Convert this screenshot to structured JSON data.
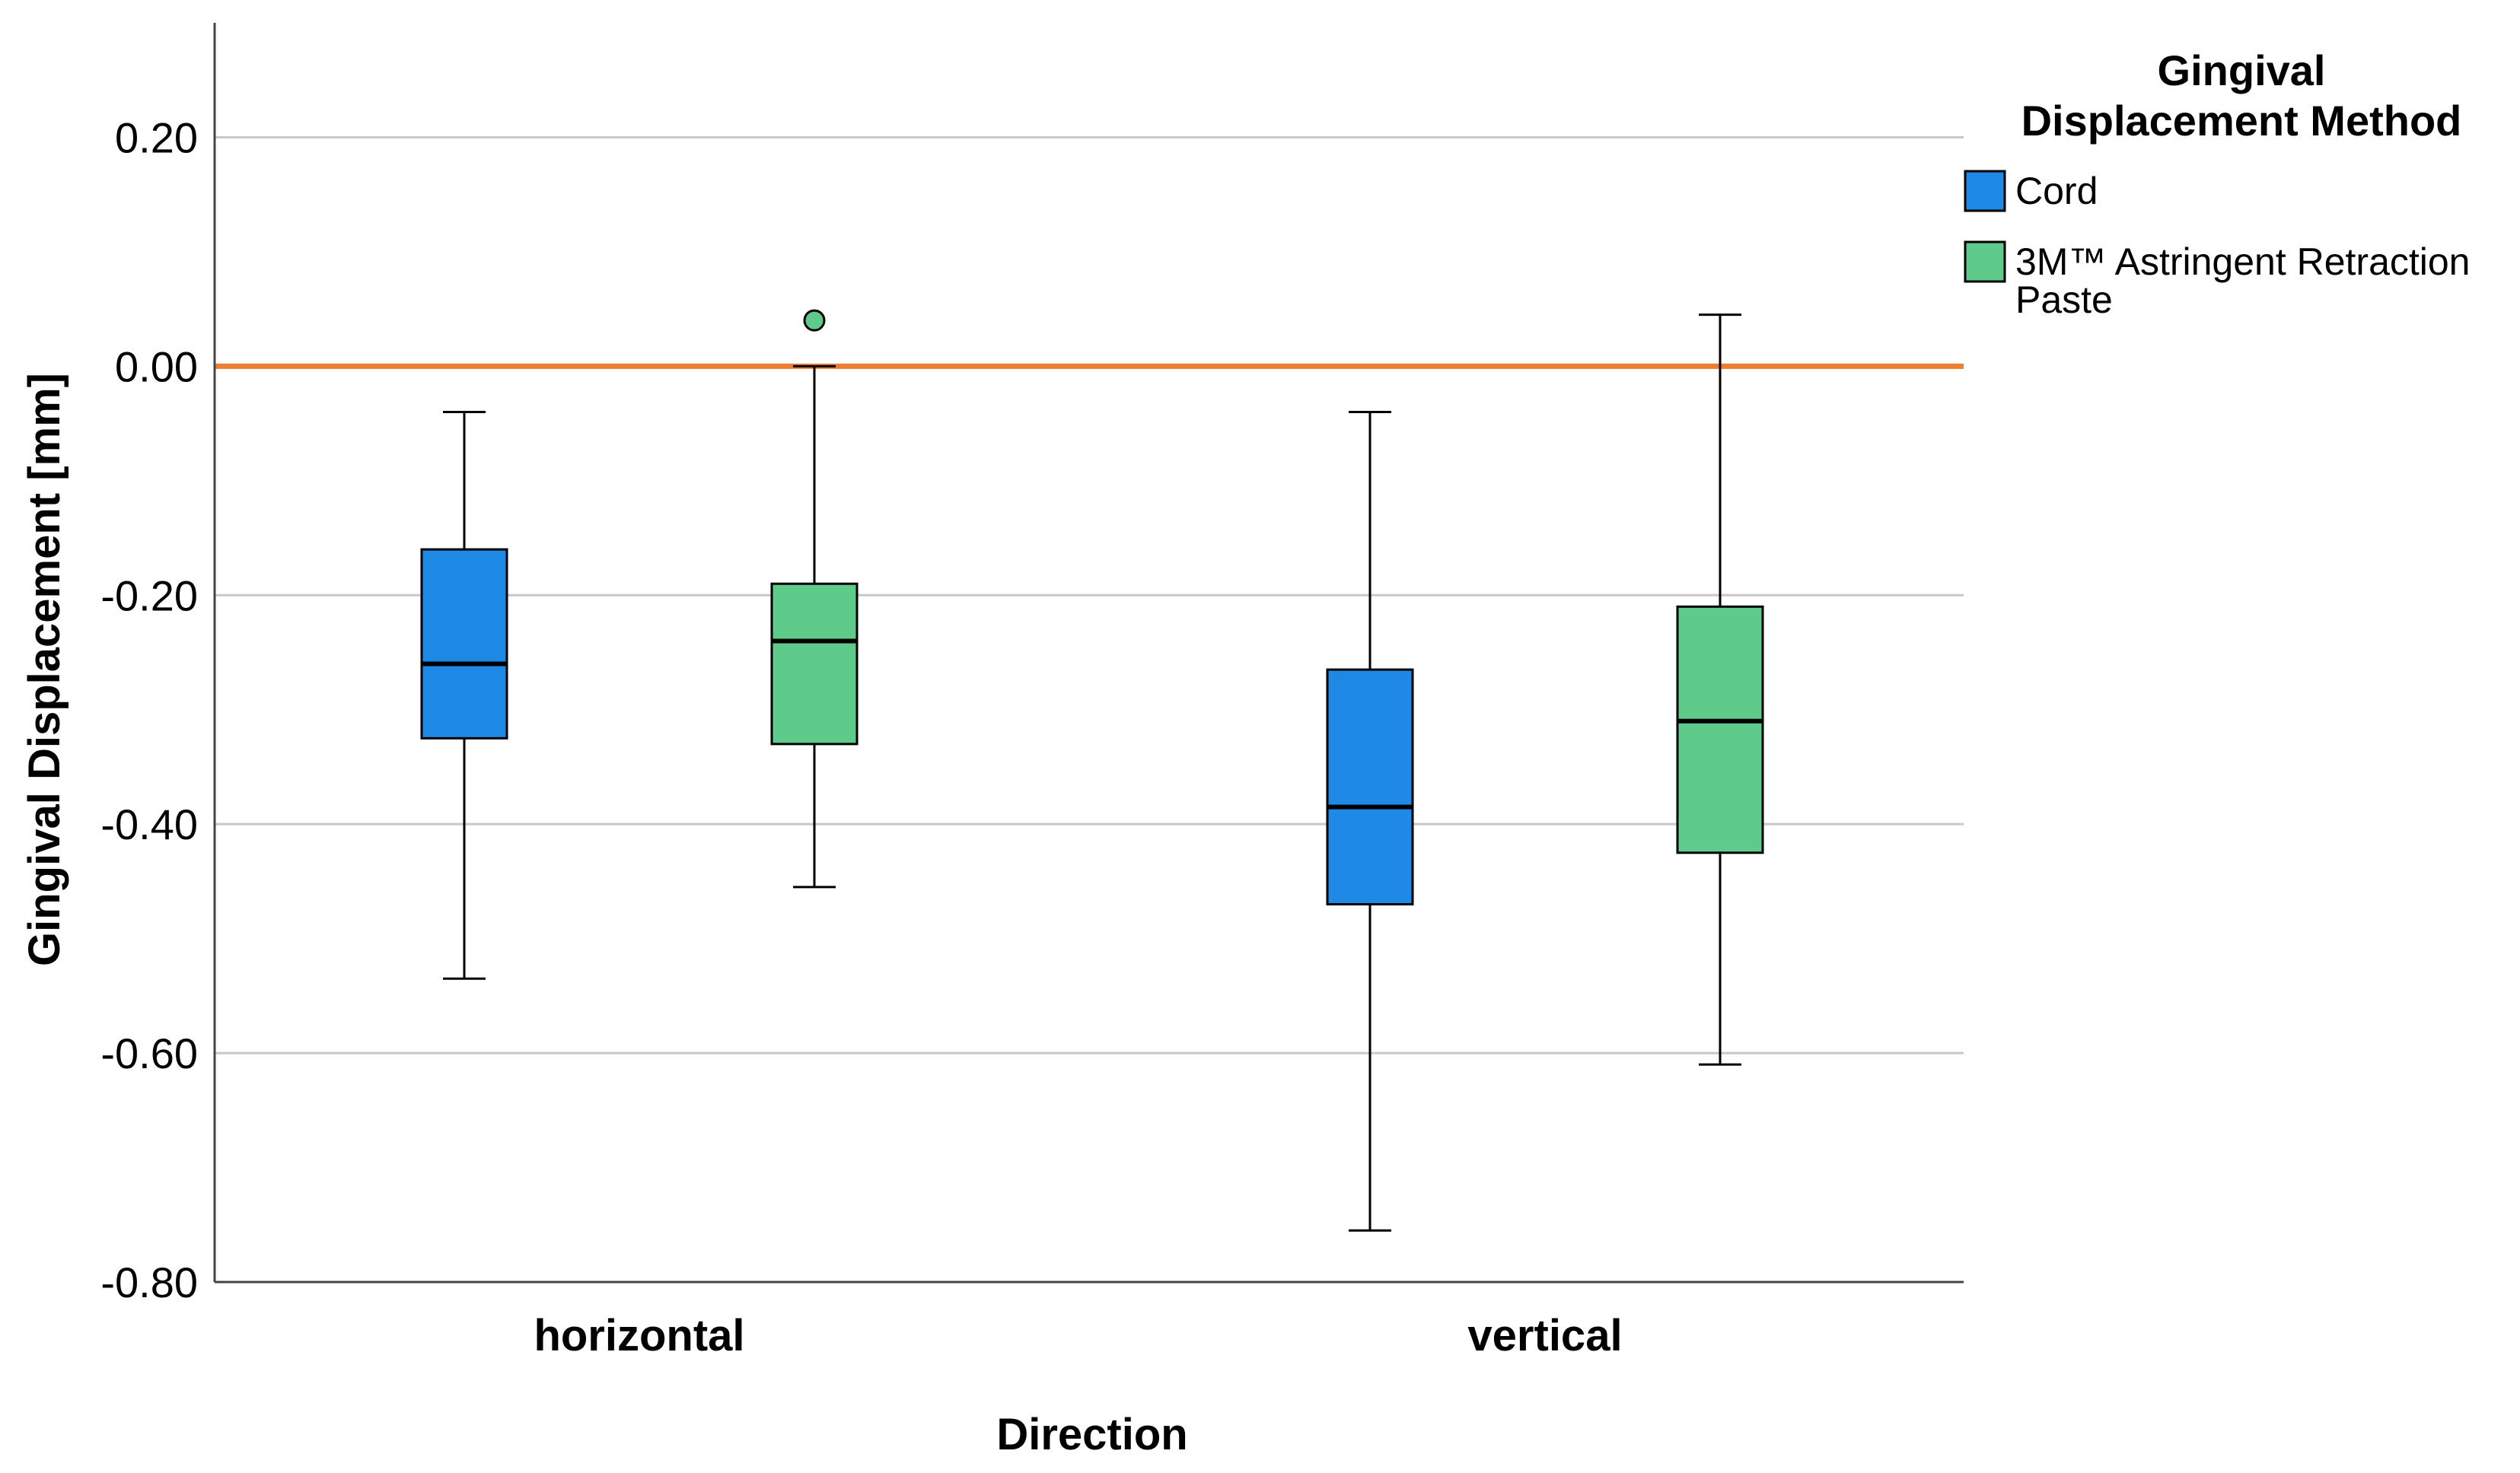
{
  "chart_data": {
    "type": "box",
    "title": "",
    "xlabel": "Direction",
    "ylabel": "Gingival Displacement [mm]",
    "ylim": [
      -0.8,
      0.3
    ],
    "yticks": [
      0.2,
      0.0,
      -0.2,
      -0.4,
      -0.6,
      -0.8
    ],
    "ytick_labels": [
      "0.20",
      "0.00",
      "-0.20",
      "-0.40",
      "-0.60",
      "-0.80"
    ],
    "grid": true,
    "categories": [
      "horizontal",
      "vertical"
    ],
    "reference_line": {
      "value": 0.0,
      "color": "#ED7D31"
    },
    "legend": {
      "title_lines": [
        "Gingival",
        "Displacement Method"
      ],
      "position": "top-right"
    },
    "series": [
      {
        "name": "Cord",
        "legend_label_lines": [
          "Cord"
        ],
        "color": "#1E88E5",
        "boxes": [
          {
            "category": "horizontal",
            "whisker_low": -0.535,
            "q1": -0.325,
            "median": -0.26,
            "q3": -0.16,
            "whisker_high": -0.04,
            "outliers": []
          },
          {
            "category": "vertical",
            "whisker_low": -0.755,
            "q1": -0.47,
            "median": -0.385,
            "q3": -0.265,
            "whisker_high": -0.04,
            "outliers": []
          }
        ]
      },
      {
        "name": "3M™ Astringent Retraction Paste",
        "legend_label_lines": [
          "3M™ Astringent Retraction",
          "Paste"
        ],
        "color": "#5ECB8A",
        "boxes": [
          {
            "category": "horizontal",
            "whisker_low": -0.455,
            "q1": -0.33,
            "median": -0.24,
            "q3": -0.19,
            "whisker_high": 0.0,
            "outliers": [
              0.04
            ]
          },
          {
            "category": "vertical",
            "whisker_low": -0.61,
            "q1": -0.425,
            "median": -0.31,
            "q3": -0.21,
            "whisker_high": 0.045,
            "outliers": []
          }
        ]
      }
    ]
  }
}
